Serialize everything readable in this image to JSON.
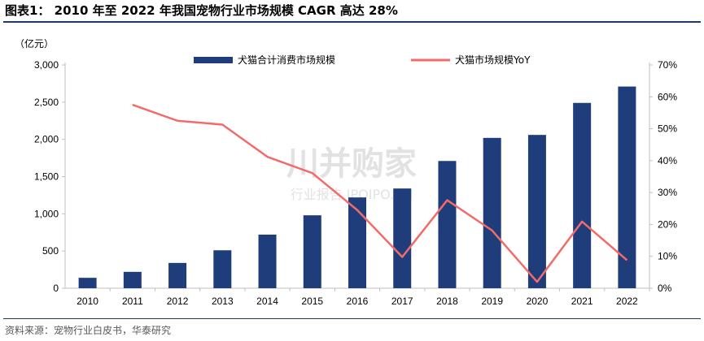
{
  "figure": {
    "title": "图表1： 2010 年至 2022 年我国宠物行业市场规模 CAGR 高达 28%",
    "source": "资料来源：宠物行业白皮书，华泰研究",
    "watermark_main": "川并购家",
    "watermark_sub": "行业报告 IPOIPO.CN"
  },
  "colors": {
    "bar": "#1f3d7a",
    "line": "#f26b6b",
    "axis": "#bfbfbf"
  },
  "chart_data": {
    "type": "bar",
    "y_unit_label": "（亿元）",
    "categories": [
      "2010",
      "2011",
      "2012",
      "2013",
      "2014",
      "2015",
      "2016",
      "2017",
      "2018",
      "2019",
      "2020",
      "2021",
      "2022"
    ],
    "series": [
      {
        "name": "犬猫合计消费市场规模",
        "type": "bar",
        "axis": "left",
        "values": [
          140,
          220,
          340,
          510,
          720,
          980,
          1220,
          1340,
          1710,
          2020,
          2060,
          2490,
          2710
        ]
      },
      {
        "name": "犬猫市场规模YoY",
        "type": "line",
        "axis": "right",
        "values": [
          null,
          57.5,
          52.5,
          51.3,
          41.2,
          36.1,
          24.5,
          9.8,
          27.6,
          18.1,
          2.0,
          20.9,
          8.8
        ]
      }
    ],
    "y_left": {
      "min": 0,
      "max": 3000,
      "step": 500,
      "tick_labels": [
        "0",
        "500",
        "1,000",
        "1,500",
        "2,000",
        "2,500",
        "3,000"
      ]
    },
    "y_right": {
      "min": 0,
      "max": 70,
      "step": 10,
      "tick_labels": [
        "0%",
        "10%",
        "20%",
        "30%",
        "40%",
        "50%",
        "60%",
        "70%"
      ]
    },
    "grid": false,
    "legend_position": "top"
  }
}
